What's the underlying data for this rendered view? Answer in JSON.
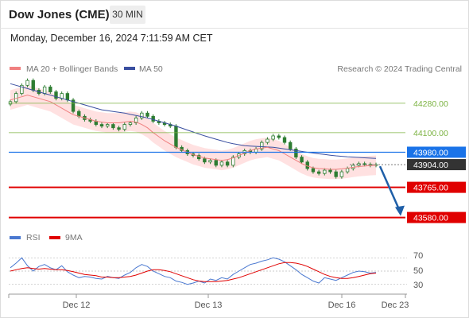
{
  "header": {
    "title": "Dow Jones (CME)",
    "timeframe": "30 MIN",
    "datetime": "Monday, December 16, 2024 7:11:59 AM CET"
  },
  "legend": {
    "ma20_label": "MA 20 + Bollinger Bands",
    "ma50_label": "MA 50",
    "credit": "Research © 2024 Trading Central",
    "rsi_label": "RSI",
    "ma9_label": "9MA"
  },
  "colors": {
    "ma20": "#f08080",
    "ma50": "#3a4fa0",
    "bollinger_fill": "#ffdede",
    "resistance": "#7cb342",
    "pivot": "#1a73e8",
    "support": "#e00000",
    "last_price": "#333333",
    "candle": "#2e7d32",
    "rsi": "#4a78d0",
    "rsi_ma": "#e00000",
    "forecast_arrow": "#1f5fa8"
  },
  "levels": [
    {
      "value": 44280,
      "label": "44280.00",
      "kind": "resistance"
    },
    {
      "value": 44100,
      "label": "44100.00",
      "kind": "resistance"
    },
    {
      "value": 43980,
      "label": "43980.00",
      "kind": "pivot"
    },
    {
      "value": 43904,
      "label": "43904.00",
      "kind": "last"
    },
    {
      "value": 43765,
      "label": "43765.00",
      "kind": "support"
    },
    {
      "value": 43580,
      "label": "43580.00",
      "kind": "support"
    }
  ],
  "rsi_ticks": [
    "70",
    "50",
    "30"
  ],
  "x_ticks": [
    "Dec 12",
    "Dec 13",
    "Dec 16",
    "Dec 23"
  ],
  "chart_data": {
    "type": "candlestick",
    "instrument": "Dow Jones (CME)",
    "timeframe": "30 MIN",
    "price_range": [
      43500,
      44450
    ],
    "close": [
      44290,
      44340,
      44390,
      44420,
      44360,
      44340,
      44380,
      44350,
      44310,
      44340,
      44300,
      44230,
      44200,
      44180,
      44170,
      44150,
      44140,
      44150,
      44130,
      44120,
      44150,
      44160,
      44190,
      44220,
      44200,
      44170,
      44160,
      44150,
      44140,
      44010,
      43990,
      43970,
      43960,
      43940,
      43920,
      43930,
      43900,
      43920,
      43900,
      43950,
      43970,
      43990,
      43980,
      44000,
      44040,
      44060,
      44080,
      44070,
      44040,
      44000,
      43950,
      43920,
      43880,
      43860,
      43850,
      43870,
      43860,
      43830,
      43860,
      43880,
      43900,
      43910,
      43905,
      43900,
      43904
    ],
    "ma20": [
      44300,
      44310,
      44320,
      44330,
      44320,
      44310,
      44300,
      44290,
      44270,
      44250,
      44230,
      44210,
      44200,
      44190,
      44180,
      44170,
      44165,
      44160,
      44160,
      44160,
      44165,
      44170,
      44165,
      44150,
      44130,
      44100,
      44075,
      44050,
      44030,
      44010,
      43995,
      43980,
      43965,
      43955,
      43945,
      43940,
      43935,
      43930,
      43935,
      43945,
      43960,
      43975,
      43990,
      44000,
      44005,
      44010,
      44000,
      43990,
      43970,
      43950,
      43930,
      43910,
      43895,
      43885,
      43880,
      43878,
      43875,
      43875,
      43878,
      43882,
      43888,
      43892,
      43895,
      43898,
      43900
    ],
    "ma50": [
      44400,
      44390,
      44380,
      44370,
      44360,
      44350,
      44340,
      44330,
      44320,
      44310,
      44300,
      44290,
      44280,
      44270,
      44260,
      44250,
      44240,
      44235,
      44230,
      44225,
      44220,
      44212,
      44205,
      44198,
      44190,
      44180,
      44170,
      44160,
      44150,
      44140,
      44128,
      44116,
      44104,
      44092,
      44080,
      44070,
      44060,
      44050,
      44040,
      44032,
      44026,
      44020,
      44018,
      44016,
      44014,
      44012,
      44010,
      44005,
      44000,
      43995,
      43990,
      43985,
      43980,
      43975,
      43970,
      43966,
      43962,
      43958,
      43955,
      43952,
      43950,
      43948,
      43946,
      43944,
      43942
    ],
    "rsi": [
      55,
      62,
      70,
      58,
      50,
      57,
      60,
      55,
      52,
      58,
      49,
      44,
      40,
      42,
      41,
      39,
      38,
      42,
      40,
      39,
      44,
      48,
      55,
      60,
      57,
      50,
      46,
      42,
      40,
      35,
      33,
      30,
      32,
      35,
      32,
      38,
      36,
      40,
      38,
      45,
      50,
      55,
      60,
      62,
      65,
      67,
      70,
      68,
      64,
      58,
      52,
      45,
      40,
      35,
      32,
      40,
      38,
      36,
      40,
      44,
      48,
      50,
      49,
      47,
      48
    ],
    "rsi_ma": [
      50,
      52,
      54,
      55,
      54,
      53,
      54,
      53,
      52,
      52,
      51,
      49,
      47,
      45,
      44,
      43,
      41,
      41,
      40,
      40,
      41,
      42,
      44,
      47,
      50,
      52,
      52,
      51,
      49,
      46,
      43,
      40,
      37,
      35,
      34,
      34,
      34,
      35,
      36,
      38,
      40,
      43,
      46,
      49,
      52,
      55,
      58,
      61,
      63,
      63,
      62,
      60,
      57,
      53,
      49,
      45,
      42,
      40,
      39,
      39,
      40,
      42,
      44,
      46,
      47
    ],
    "rsi_range": [
      20,
      80
    ]
  }
}
